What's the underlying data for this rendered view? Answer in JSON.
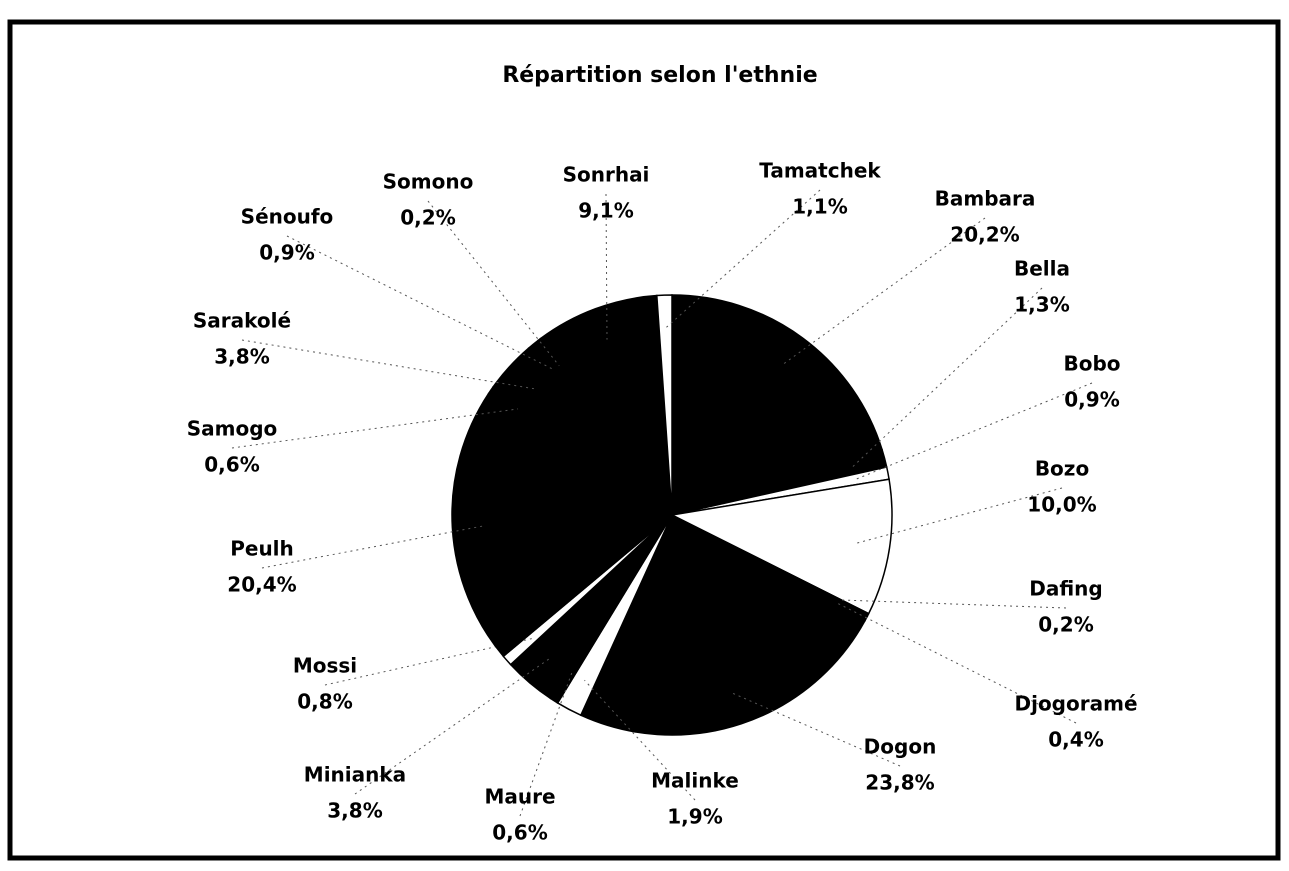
{
  "chart_data": {
    "type": "pie",
    "title": "Répartition selon l'ethnie",
    "categories": [
      "Bambara",
      "Bella",
      "Bobo",
      "Bozo",
      "Dafing",
      "Djogoramé",
      "Dogon",
      "Malinke",
      "Maure",
      "Minianka",
      "Mossi",
      "Peulh",
      "Samogo",
      "Sarakolé",
      "Sénoufo",
      "Somono",
      "Sonrhai",
      "Tamatchek"
    ],
    "values": [
      20.2,
      1.3,
      0.9,
      10.0,
      0.2,
      0.4,
      23.8,
      1.9,
      0.6,
      3.8,
      0.8,
      20.4,
      0.6,
      3.8,
      0.9,
      0.2,
      9.1,
      1.1
    ],
    "value_labels": [
      "20,2%",
      "1,3%",
      "0,9%",
      "10,0%",
      "0,2%",
      "0,4%",
      "23,8%",
      "1,9%",
      "0,6%",
      "3,8%",
      "0,8%",
      "20,4%",
      "0,6%",
      "3,8%",
      "0,9%",
      "0,2%",
      "9,1%",
      "1,1%"
    ],
    "colors": [
      "#000000",
      "#000000",
      "#ffffff",
      "#ffffff",
      "#000000",
      "#000000",
      "#000000",
      "#ffffff",
      "#000000",
      "#000000",
      "#ffffff",
      "#000000",
      "#000000",
      "#000000",
      "#000000",
      "#000000",
      "#000000",
      "#ffffff"
    ]
  }
}
